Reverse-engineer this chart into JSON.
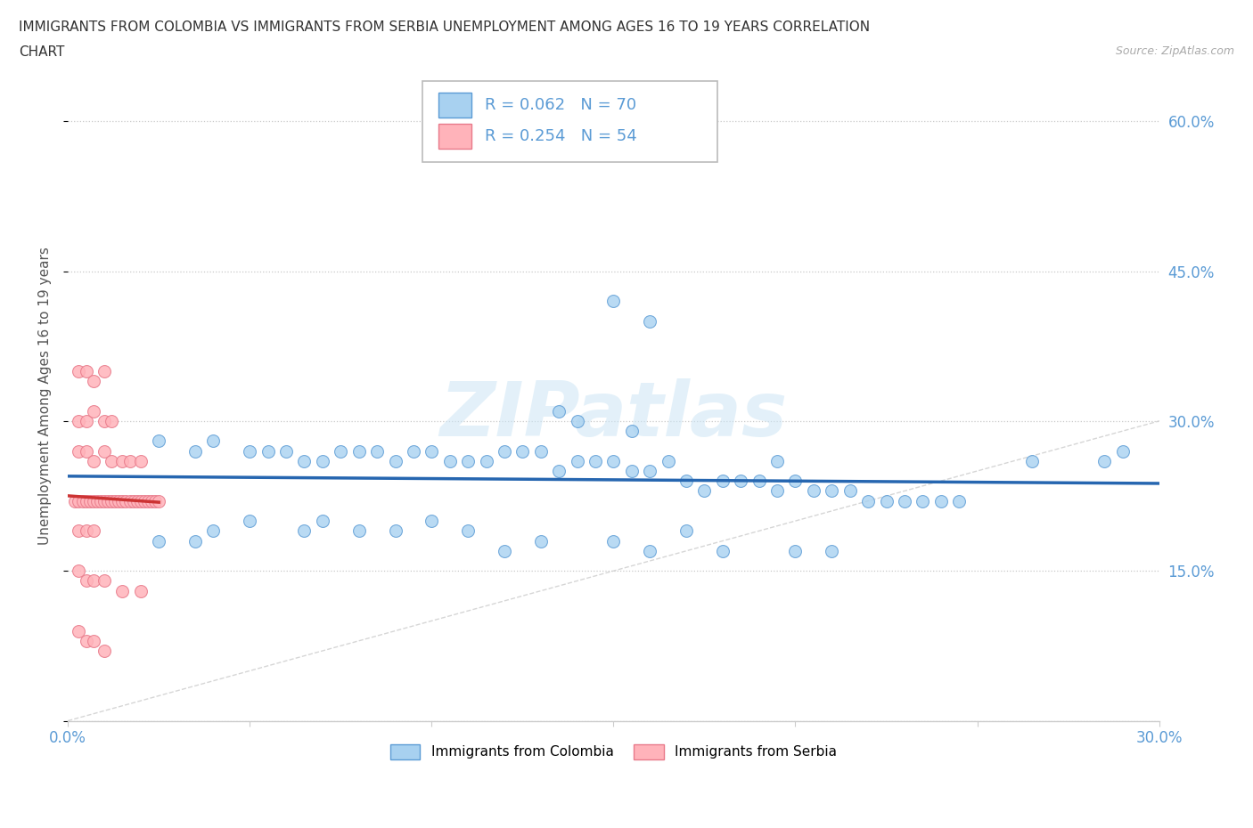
{
  "title_line1": "IMMIGRANTS FROM COLOMBIA VS IMMIGRANTS FROM SERBIA UNEMPLOYMENT AMONG AGES 16 TO 19 YEARS CORRELATION",
  "title_line2": "CHART",
  "source_text": "Source: ZipAtlas.com",
  "ylabel": "Unemployment Among Ages 16 to 19 years",
  "xlim": [
    0.0,
    0.3
  ],
  "ylim": [
    0.0,
    0.65
  ],
  "colombia_color": "#a8d1f0",
  "colombia_edge": "#5b9bd5",
  "serbia_color": "#ffb3ba",
  "serbia_edge": "#e87a8a",
  "colombia_line_color": "#2666b0",
  "serbia_line_color": "#cc3333",
  "diag_color": "#cccccc",
  "colombia_R": 0.062,
  "colombia_N": 70,
  "serbia_R": 0.254,
  "serbia_N": 54,
  "watermark": "ZIPatlas",
  "grid_color": "#c8c8c8",
  "tick_color": "#5b9bd5",
  "colombia_x": [
    0.025,
    0.035,
    0.04,
    0.05,
    0.055,
    0.06,
    0.065,
    0.07,
    0.075,
    0.08,
    0.085,
    0.09,
    0.095,
    0.1,
    0.105,
    0.11,
    0.115,
    0.12,
    0.125,
    0.13,
    0.135,
    0.14,
    0.145,
    0.15,
    0.155,
    0.16,
    0.165,
    0.17,
    0.175,
    0.18,
    0.185,
    0.19,
    0.195,
    0.2,
    0.205,
    0.21,
    0.215,
    0.22,
    0.225,
    0.23,
    0.235,
    0.24,
    0.245,
    0.025,
    0.035,
    0.04,
    0.05,
    0.065,
    0.07,
    0.08,
    0.09,
    0.1,
    0.11,
    0.12,
    0.13,
    0.15,
    0.16,
    0.17,
    0.18,
    0.2,
    0.21,
    0.15,
    0.16,
    0.265,
    0.135,
    0.14,
    0.155,
    0.195,
    0.285,
    0.29
  ],
  "colombia_y": [
    0.28,
    0.27,
    0.28,
    0.27,
    0.27,
    0.27,
    0.26,
    0.26,
    0.27,
    0.27,
    0.27,
    0.26,
    0.27,
    0.27,
    0.26,
    0.26,
    0.26,
    0.27,
    0.27,
    0.27,
    0.25,
    0.26,
    0.26,
    0.26,
    0.25,
    0.25,
    0.26,
    0.24,
    0.23,
    0.24,
    0.24,
    0.24,
    0.23,
    0.24,
    0.23,
    0.23,
    0.23,
    0.22,
    0.22,
    0.22,
    0.22,
    0.22,
    0.22,
    0.18,
    0.18,
    0.19,
    0.2,
    0.19,
    0.2,
    0.19,
    0.19,
    0.2,
    0.19,
    0.17,
    0.18,
    0.18,
    0.17,
    0.19,
    0.17,
    0.17,
    0.17,
    0.42,
    0.4,
    0.26,
    0.31,
    0.3,
    0.29,
    0.26,
    0.26,
    0.27
  ],
  "serbia_x": [
    0.002,
    0.003,
    0.004,
    0.005,
    0.006,
    0.007,
    0.008,
    0.009,
    0.01,
    0.011,
    0.012,
    0.013,
    0.014,
    0.015,
    0.016,
    0.017,
    0.018,
    0.019,
    0.02,
    0.021,
    0.022,
    0.023,
    0.024,
    0.025,
    0.003,
    0.005,
    0.007,
    0.01,
    0.012,
    0.015,
    0.017,
    0.02,
    0.003,
    0.005,
    0.007,
    0.01,
    0.012,
    0.003,
    0.005,
    0.007,
    0.01,
    0.003,
    0.005,
    0.007,
    0.003,
    0.005,
    0.007,
    0.01,
    0.015,
    0.02,
    0.003,
    0.005,
    0.007,
    0.01
  ],
  "serbia_y": [
    0.22,
    0.22,
    0.22,
    0.22,
    0.22,
    0.22,
    0.22,
    0.22,
    0.22,
    0.22,
    0.22,
    0.22,
    0.22,
    0.22,
    0.22,
    0.22,
    0.22,
    0.22,
    0.22,
    0.22,
    0.22,
    0.22,
    0.22,
    0.22,
    0.27,
    0.27,
    0.26,
    0.27,
    0.26,
    0.26,
    0.26,
    0.26,
    0.3,
    0.3,
    0.31,
    0.3,
    0.3,
    0.35,
    0.35,
    0.34,
    0.35,
    0.19,
    0.19,
    0.19,
    0.15,
    0.14,
    0.14,
    0.14,
    0.13,
    0.13,
    0.09,
    0.08,
    0.08,
    0.07
  ]
}
